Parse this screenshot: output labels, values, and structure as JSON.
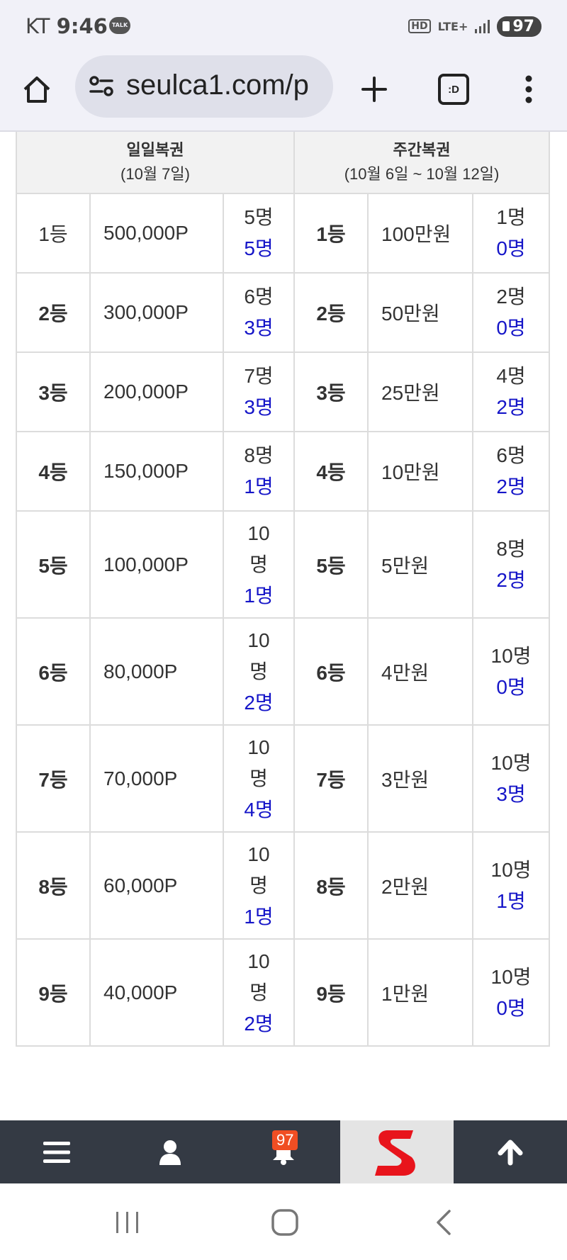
{
  "status_bar": {
    "carrier": "KT",
    "time": "9:46",
    "talk_badge": "TALK",
    "hd_label": "HD",
    "network": "LTE+",
    "battery": "97"
  },
  "browser": {
    "url": "seulca1.com/p",
    "tabs_label": ":D"
  },
  "table": {
    "daily_title": "일일복권",
    "daily_date": "(10월 7일)",
    "weekly_title": "주간복권",
    "weekly_date": "(10월 6일 ~ 10월 12일)",
    "rows": [
      {
        "rank": "1등",
        "daily_prize": "500,000P",
        "daily_quota": "5명",
        "daily_winners": "5명",
        "weekly_rank": "1등",
        "weekly_prize": "100만원",
        "weekly_quota": "1명",
        "weekly_winners": "0명"
      },
      {
        "rank": "2등",
        "daily_prize": "300,000P",
        "daily_quota": "6명",
        "daily_winners": "3명",
        "weekly_rank": "2등",
        "weekly_prize": "50만원",
        "weekly_quota": "2명",
        "weekly_winners": "0명"
      },
      {
        "rank": "3등",
        "daily_prize": "200,000P",
        "daily_quota": "7명",
        "daily_winners": "3명",
        "weekly_rank": "3등",
        "weekly_prize": "25만원",
        "weekly_quota": "4명",
        "weekly_winners": "2명"
      },
      {
        "rank": "4등",
        "daily_prize": "150,000P",
        "daily_quota": "8명",
        "daily_winners": "1명",
        "weekly_rank": "4등",
        "weekly_prize": "10만원",
        "weekly_quota": "6명",
        "weekly_winners": "2명"
      },
      {
        "rank": "5등",
        "daily_prize": "100,000P",
        "daily_quota": "10명",
        "daily_winners": "1명",
        "weekly_rank": "5등",
        "weekly_prize": "5만원",
        "weekly_quota": "8명",
        "weekly_winners": "2명"
      },
      {
        "rank": "6등",
        "daily_prize": "80,000P",
        "daily_quota": "10명",
        "daily_winners": "2명",
        "weekly_rank": "6등",
        "weekly_prize": "4만원",
        "weekly_quota": "10명",
        "weekly_winners": "0명"
      },
      {
        "rank": "7등",
        "daily_prize": "70,000P",
        "daily_quota": "10명",
        "daily_winners": "4명",
        "weekly_rank": "7등",
        "weekly_prize": "3만원",
        "weekly_quota": "10명",
        "weekly_winners": "3명"
      },
      {
        "rank": "8등",
        "daily_prize": "60,000P",
        "daily_quota": "10명",
        "daily_winners": "1명",
        "weekly_rank": "8등",
        "weekly_prize": "2만원",
        "weekly_quota": "10명",
        "weekly_winners": "1명"
      },
      {
        "rank": "9등",
        "daily_prize": "40,000P",
        "daily_quota": "10명",
        "daily_winners": "2명",
        "weekly_rank": "9등",
        "weekly_prize": "1만원",
        "weekly_quota": "10명",
        "weekly_winners": "0명"
      }
    ]
  },
  "bottom_bar": {
    "notification_count": "97",
    "logo_letter": "S"
  },
  "colors": {
    "winner_blue": "#1515c8",
    "bottom_bar": "#343a44",
    "badge": "#f04e23",
    "logo_red": "#e8141c"
  }
}
